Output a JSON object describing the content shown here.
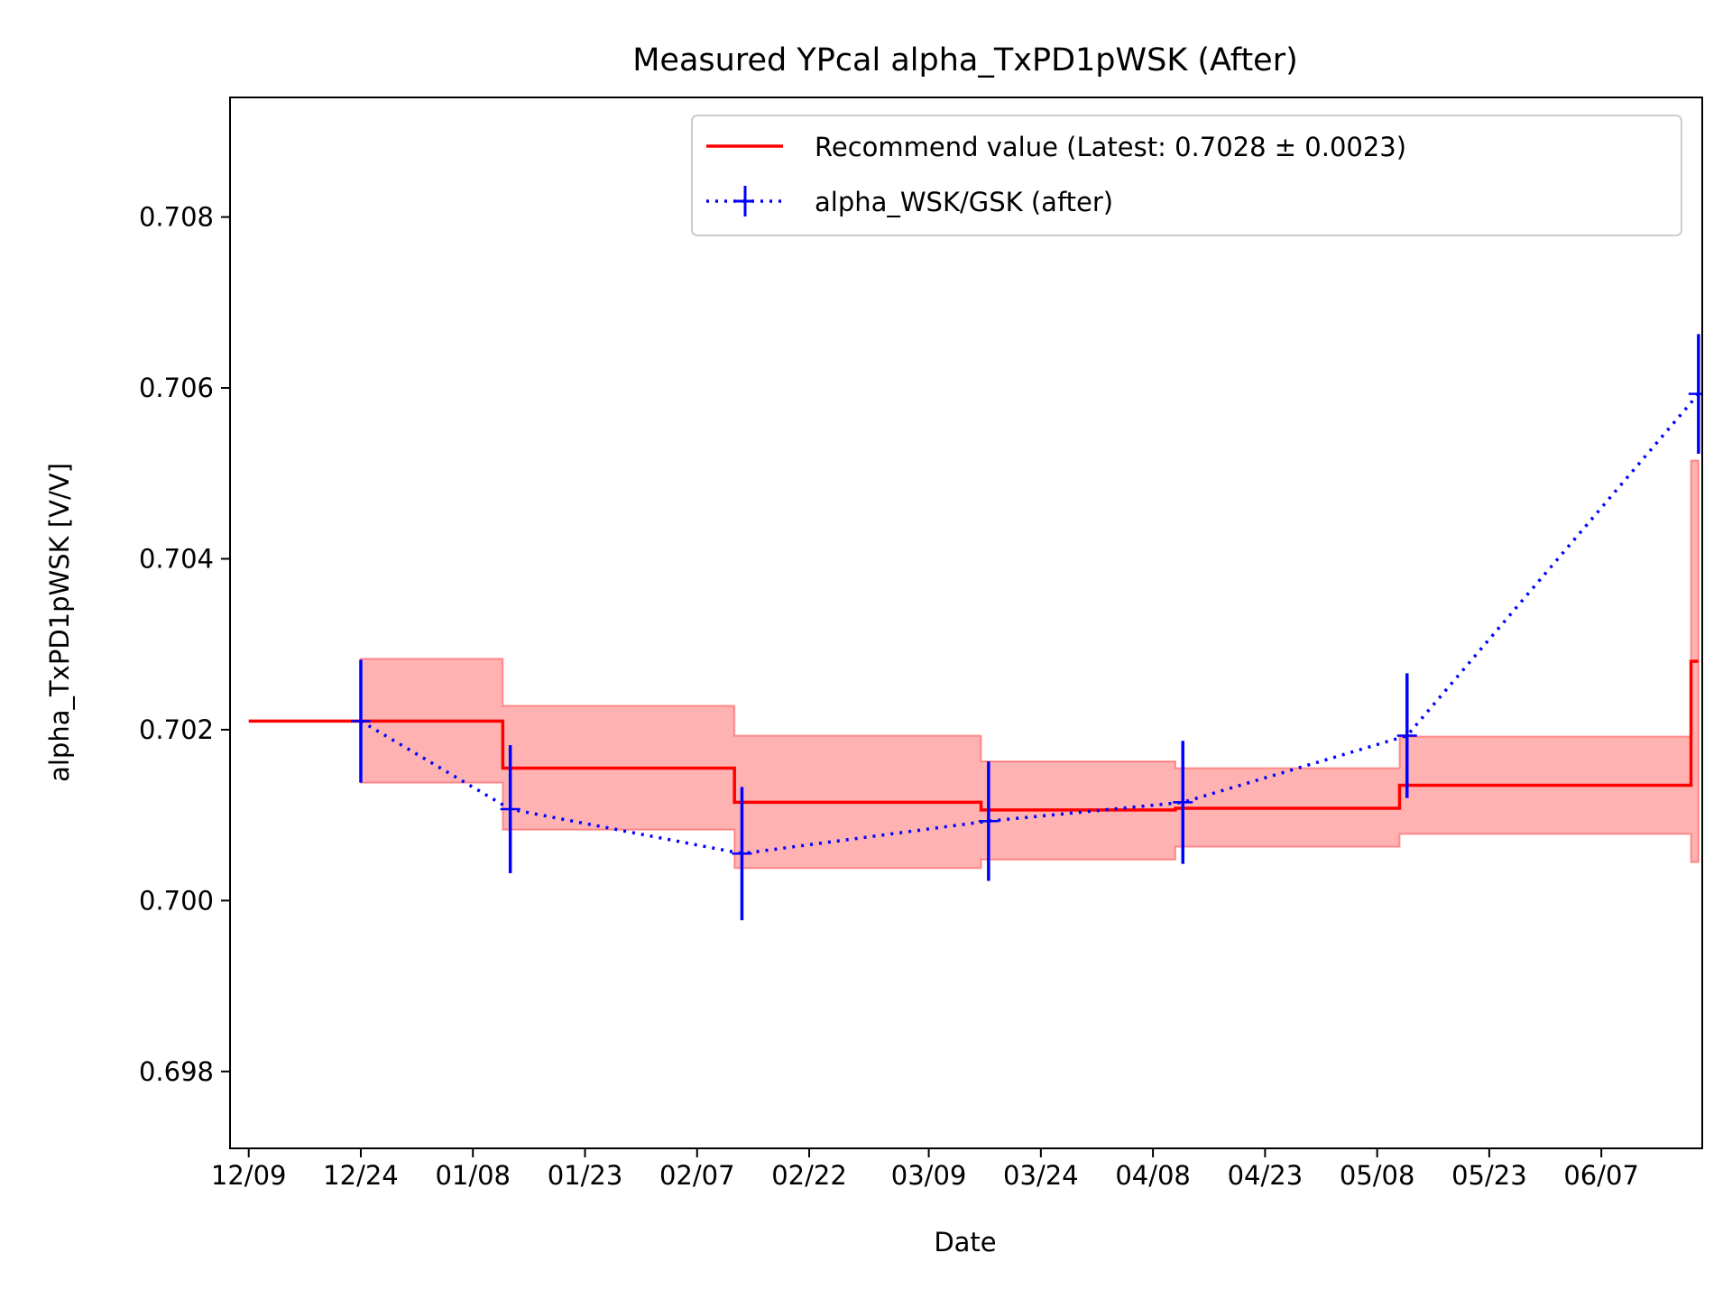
{
  "chart_data": {
    "type": "line",
    "title": "Measured YPcal alpha_TxPD1pWSK (After)",
    "xlabel": "Date",
    "ylabel": "alpha_TxPD1pWSK [V/V]",
    "ylim": [
      0.6971,
      0.7094
    ],
    "xlim": [
      "12/06.5",
      "06/20.5"
    ],
    "x_ticks": [
      "12/09",
      "12/24",
      "01/08",
      "01/23",
      "02/07",
      "02/22",
      "03/09",
      "03/24",
      "04/08",
      "04/23",
      "05/08",
      "05/23",
      "06/07"
    ],
    "y_ticks": [
      "0.698",
      "0.700",
      "0.702",
      "0.704",
      "0.706",
      "0.708"
    ],
    "legend_position": "upper right",
    "grid": false,
    "series": [
      {
        "name": "Recommend value (Latest: 0.7028 ± 0.0023)",
        "kind": "step-with-band",
        "color": "#ff0000",
        "band_color": "#ff0000",
        "steps": [
          {
            "start": "12/09",
            "end": "12/24",
            "value": 0.7021,
            "low": null,
            "high": null
          },
          {
            "start": "12/24",
            "end": "01/12",
            "value": 0.7021,
            "low": 0.70138,
            "high": 0.70283
          },
          {
            "start": "01/12",
            "end": "02/12",
            "value": 0.70155,
            "low": 0.70083,
            "high": 0.70228
          },
          {
            "start": "02/12",
            "end": "03/16",
            "value": 0.70115,
            "low": 0.70038,
            "high": 0.70193
          },
          {
            "start": "03/16",
            "end": "04/11",
            "value": 0.70106,
            "low": 0.70048,
            "high": 0.70163
          },
          {
            "start": "04/11",
            "end": "05/11",
            "value": 0.70108,
            "low": 0.70063,
            "high": 0.70155
          },
          {
            "start": "05/11",
            "end": "06/19",
            "value": 0.70135,
            "low": 0.70078,
            "high": 0.70192
          },
          {
            "start": "06/19",
            "end": "06/20",
            "value": 0.7028,
            "low": 0.70045,
            "high": 0.70515
          }
        ]
      },
      {
        "name": "alpha_WSK/GSK (after)",
        "kind": "errorbar",
        "color": "#0000ff",
        "linestyle": "dotted",
        "points": [
          {
            "x": "12/24",
            "y": 0.7021,
            "err": 0.00072
          },
          {
            "x": "01/13",
            "y": 0.70107,
            "err": 0.00075
          },
          {
            "x": "02/13",
            "y": 0.70055,
            "err": 0.00078
          },
          {
            "x": "03/17",
            "y": 0.70093,
            "err": 0.0007
          },
          {
            "x": "04/12",
            "y": 0.70115,
            "err": 0.00072
          },
          {
            "x": "05/12",
            "y": 0.70193,
            "err": 0.00073
          },
          {
            "x": "06/20",
            "y": 0.70593,
            "err": 0.0007
          }
        ]
      }
    ]
  }
}
